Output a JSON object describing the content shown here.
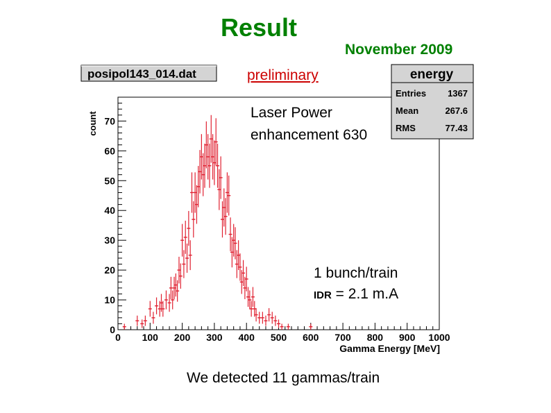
{
  "slide": {
    "title": "Result",
    "date": "November 2009",
    "preliminary": "preliminary",
    "laser_line1": "Laser Power",
    "laser_line2": "enhancement 630",
    "bunch": "1 bunch/train",
    "idr_label": "IDR",
    "idr_value": " = 2.1 m.A",
    "footer": "We detected 11 gammas/train"
  },
  "colors": {
    "title": "#008000",
    "preliminary": "#cc0000",
    "data": "#e02030"
  },
  "chart_data": {
    "type": "scatter",
    "title": "posipol143_014.dat",
    "xlabel": "Gamma Energy [MeV]",
    "ylabel": "count",
    "xlim": [
      0,
      1000
    ],
    "ylim": [
      0,
      78
    ],
    "xticks": [
      0,
      100,
      200,
      300,
      400,
      500,
      600,
      700,
      800,
      900,
      1000
    ],
    "yticks": [
      0,
      10,
      20,
      30,
      40,
      50,
      60,
      70
    ],
    "stats": {
      "name": "energy",
      "rows": [
        {
          "label": "Entries",
          "value": "1367"
        },
        {
          "label": "Mean",
          "value": "267.6"
        },
        {
          "label": "RMS",
          "value": "77.43"
        }
      ]
    },
    "error_bars": "sqrt(N)",
    "series": [
      {
        "x": [
          20,
          60,
          75,
          85,
          100,
          110,
          120,
          130,
          135,
          140,
          150,
          160,
          165,
          170,
          175,
          180,
          185,
          190,
          195,
          200,
          205,
          210,
          215,
          220,
          225,
          230,
          235,
          240,
          245,
          250,
          255,
          260,
          265,
          270,
          275,
          280,
          285,
          290,
          295,
          300,
          305,
          310,
          315,
          320,
          325,
          330,
          335,
          340,
          345,
          350,
          355,
          360,
          365,
          370,
          375,
          380,
          385,
          390,
          395,
          400,
          405,
          410,
          415,
          420,
          425,
          430,
          440,
          450,
          460,
          470,
          480,
          490,
          500,
          510,
          530,
          600
        ],
        "y": [
          1,
          3,
          2,
          3,
          7,
          4,
          8,
          7,
          9,
          7,
          10,
          9,
          14,
          10,
          14,
          15,
          13,
          20,
          18,
          30,
          22,
          31,
          24,
          34,
          25,
          46,
          37,
          46,
          42,
          48,
          53,
          58,
          52,
          55,
          62,
          58,
          55,
          64,
          58,
          56,
          63,
          55,
          47,
          51,
          37,
          41,
          38,
          46,
          45,
          32,
          26,
          30,
          29,
          22,
          25,
          21,
          16,
          19,
          14,
          17,
          11,
          10,
          7,
          11,
          7,
          5,
          4,
          4,
          3,
          5,
          4,
          3,
          2,
          1,
          1,
          1
        ]
      }
    ]
  }
}
